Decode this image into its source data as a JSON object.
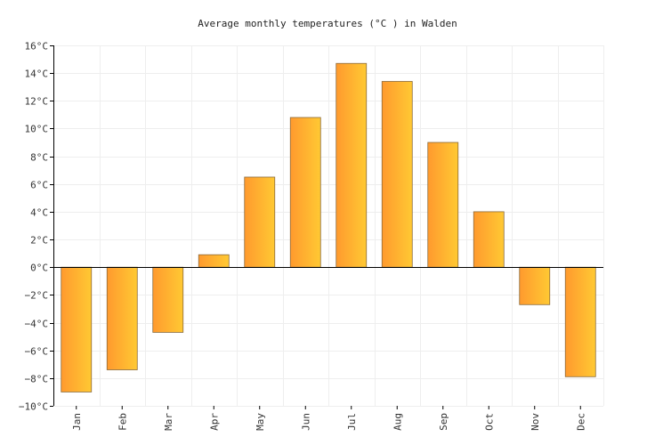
{
  "chart_data": {
    "type": "bar",
    "title": "Average monthly temperatures (°C ) in Walden",
    "categories": [
      "Jan",
      "Feb",
      "Mar",
      "Apr",
      "May",
      "Jun",
      "Jul",
      "Aug",
      "Sep",
      "Oct",
      "Nov",
      "Dec"
    ],
    "values": [
      -9.0,
      -7.4,
      -4.7,
      0.9,
      6.5,
      10.8,
      14.7,
      13.4,
      9.0,
      4.0,
      -2.7,
      -7.9
    ],
    "ylim": [
      -10,
      16
    ],
    "yticks": [
      16,
      14,
      12,
      10,
      8,
      6,
      4,
      2,
      0,
      -2,
      -4,
      -6,
      -8,
      -10
    ],
    "ytick_labels": [
      "16°C",
      "14°C",
      "12°C",
      "10°C",
      "8°C",
      "6°C",
      "4°C",
      "2°C",
      "0°C",
      "−2°C",
      "−4°C",
      "−6°C",
      "−8°C",
      "−10°C"
    ],
    "xlabel": "",
    "ylabel": "",
    "grid": true,
    "colors": {
      "bar_start": "#ff9a2e",
      "bar_end": "#ffc933",
      "zero_line": "#000000",
      "grid": "#eeeeee"
    }
  }
}
